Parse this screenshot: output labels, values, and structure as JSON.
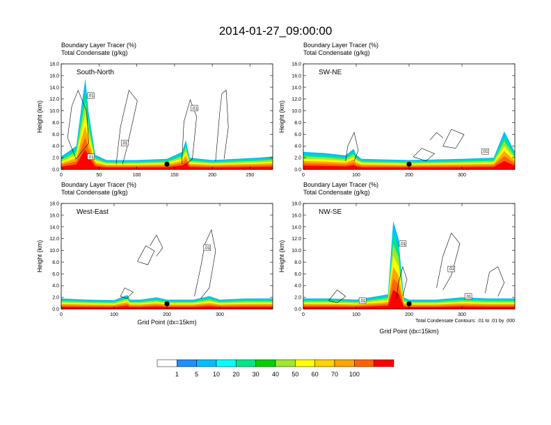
{
  "figure": {
    "title": "2014-01-27_09:00:00",
    "footnote": "Total Condensate Contours: .01 to .01 by .000",
    "label_bar": {
      "ticks": [
        "1",
        "5",
        "10",
        "20",
        "30",
        "40",
        "50",
        "60",
        "70",
        "100"
      ],
      "colors": [
        "#ffffff",
        "#1e90ff",
        "#00bfff",
        "#00ffff",
        "#00e68a",
        "#00d200",
        "#a0e632",
        "#ffff00",
        "#ffd200",
        "#ffa500",
        "#ff6400",
        "#ff0000"
      ]
    }
  },
  "chart_data": [
    {
      "type": "heatmap",
      "cross_section": "South-North",
      "header_line1": "Boundary Layer Tracer   (%)",
      "header_line2": "Total Condensate   (g/kg)",
      "ylabel": "Height (km)",
      "xlabel": "",
      "ylim": [
        0,
        18
      ],
      "yticks": [
        "0.0",
        "2.0",
        "4.0",
        "6.0",
        "8.0",
        "10.0",
        "12.0",
        "14.0",
        "16.0",
        "18.0"
      ],
      "xlim": [
        0,
        280
      ],
      "xticks": [
        0,
        50,
        100,
        150,
        200,
        250
      ],
      "marker_x": 140,
      "contour_labels": [
        ".01",
        ".01",
        ".01",
        ".01"
      ],
      "tracer_profile": {
        "x": [
          0,
          20,
          28,
          32,
          36,
          45,
          60,
          100,
          140,
          160,
          165,
          170,
          200,
          260,
          280
        ],
        "top_km": [
          2.2,
          4.0,
          12.0,
          15.5,
          10.0,
          2.5,
          1.6,
          1.6,
          1.8,
          3.0,
          5.0,
          2.0,
          1.6,
          2.0,
          2.2
        ]
      }
    },
    {
      "type": "heatmap",
      "cross_section": "SW-NE",
      "header_line1": "Boundary Layer Tracer   (%)",
      "header_line2": "Total Condensate   (g/kg)",
      "ylabel": "Height (km)",
      "xlabel": "",
      "ylim": [
        0,
        18
      ],
      "yticks": [
        "0.0",
        "2.0",
        "4.0",
        "6.0",
        "8.0",
        "10.0",
        "12.0",
        "14.0",
        "16.0",
        "18.0"
      ],
      "xlim": [
        0,
        400
      ],
      "xticks": [
        0,
        100,
        200,
        300
      ],
      "marker_x": 200,
      "contour_labels": [
        ".01"
      ],
      "tracer_profile": {
        "x": [
          0,
          40,
          80,
          95,
          100,
          110,
          200,
          300,
          360,
          380,
          400
        ],
        "top_km": [
          3.0,
          2.8,
          2.4,
          3.5,
          2.5,
          1.8,
          1.6,
          1.8,
          2.0,
          6.5,
          3.0
        ]
      }
    },
    {
      "type": "heatmap",
      "cross_section": "West-East",
      "header_line1": "Boundary Layer Tracer   (%)",
      "header_line2": "Total Condensate   (g/kg)",
      "ylabel": "Height (km)",
      "xlabel": "Grid Point (dx=15km)",
      "ylim": [
        0,
        18
      ],
      "yticks": [
        "0.0",
        "2.0",
        "4.0",
        "6.0",
        "8.0",
        "10.0",
        "12.0",
        "14.0",
        "16.0",
        "18.0"
      ],
      "xlim": [
        0,
        400
      ],
      "xticks": [
        0,
        100,
        200,
        300
      ],
      "marker_x": 200,
      "contour_labels": [
        ".01"
      ],
      "tracer_profile": {
        "x": [
          0,
          50,
          100,
          125,
          130,
          150,
          180,
          200,
          250,
          280,
          300,
          350,
          400
        ],
        "top_km": [
          1.8,
          1.6,
          1.5,
          2.4,
          1.6,
          1.6,
          2.0,
          1.6,
          1.6,
          2.2,
          1.6,
          1.8,
          1.8
        ]
      }
    },
    {
      "type": "heatmap",
      "cross_section": "NW-SE",
      "header_line1": "Boundary Layer Tracer   (%)",
      "header_line2": "Total Condensate   (g/kg)",
      "ylabel": "Height (km)",
      "xlabel": "Grid Point (dx=15km)",
      "ylim": [
        0,
        18
      ],
      "yticks": [
        "0.0",
        "2.0",
        "4.0",
        "6.0",
        "8.0",
        "10.0",
        "12.0",
        "14.0",
        "16.0",
        "18.0"
      ],
      "xlim": [
        0,
        400
      ],
      "xticks": [
        0,
        100,
        200,
        300
      ],
      "marker_x": 200,
      "contour_labels": [
        ".01",
        ".01",
        ".01",
        ".01"
      ],
      "tracer_profile": {
        "x": [
          0,
          50,
          100,
          160,
          170,
          180,
          190,
          200,
          250,
          300,
          350,
          400
        ],
        "top_km": [
          1.8,
          1.8,
          1.6,
          2.5,
          15.0,
          12.0,
          2.0,
          1.6,
          1.6,
          2.0,
          1.8,
          1.8
        ]
      }
    }
  ]
}
